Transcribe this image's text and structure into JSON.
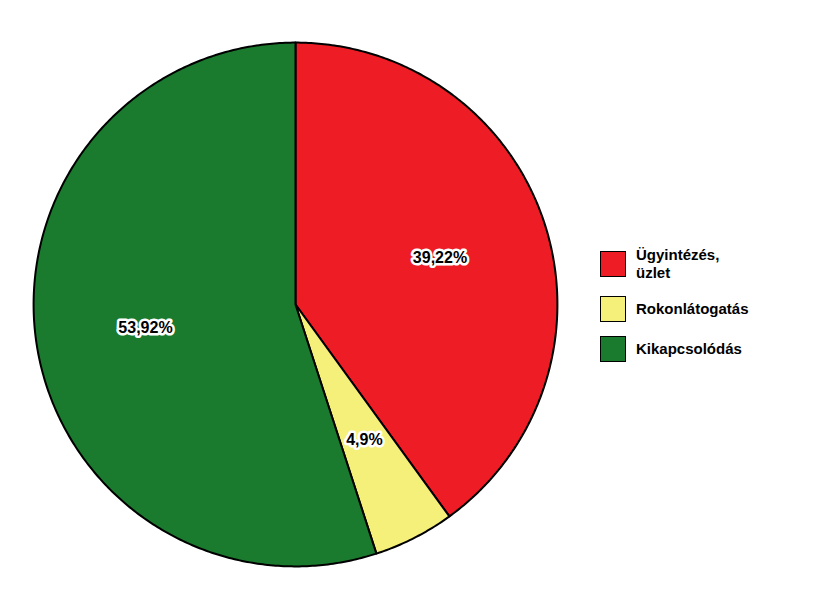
{
  "chart_data": {
    "type": "pie",
    "categories": [
      "Ügyintézés,\nüzlet",
      "Rokonlátogatás",
      "Kikapcsolódás"
    ],
    "values": [
      39.22,
      4.9,
      53.92
    ],
    "value_labels": [
      "39,22%",
      "4,9%",
      "53,92%"
    ],
    "colors": [
      "#ee1c25",
      "#f5f07a",
      "#1a7a2e"
    ],
    "data_labels": true,
    "legend": "right"
  }
}
